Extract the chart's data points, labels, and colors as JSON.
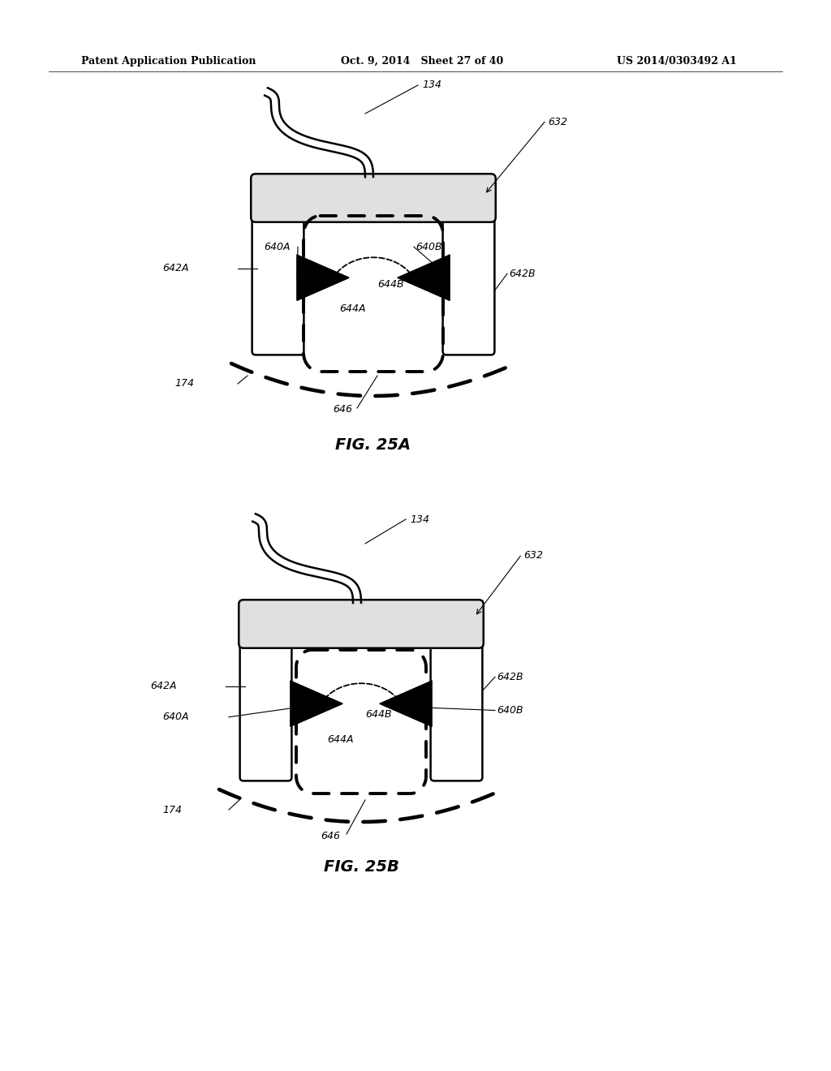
{
  "bg_color": "#ffffff",
  "line_color": "#000000",
  "header_text_left": "Patent Application Publication",
  "header_text_mid": "Oct. 9, 2014   Sheet 27 of 40",
  "header_text_right": "US 2014/0303492 A1",
  "fig25a_label": "FIG. 25A",
  "fig25b_label": "FIG. 25B"
}
